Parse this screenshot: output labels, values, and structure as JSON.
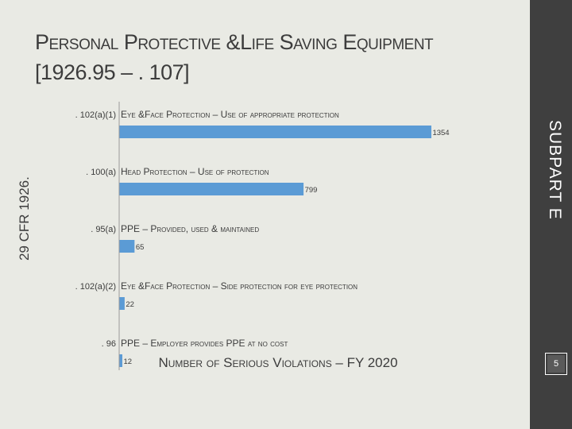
{
  "title": {
    "line1": "Personal Protective   &Life Saving Equipment",
    "line2": "[1926.95 – . 107]"
  },
  "side_label": "SUBPART E",
  "left_label": "29 CFR 1926.",
  "page_number": "5",
  "colors": {
    "bar": "#5b9bd5",
    "sidebar": "#3f3f3f",
    "background": "#e9eae4"
  },
  "chart_data": {
    "type": "bar",
    "orientation": "horizontal",
    "xlabel": "Number of Serious Violations – FY 2020",
    "xlim": [
      0,
      1380
    ],
    "grid": false,
    "categories": [
      {
        "code": ". 102(a)(1)",
        "description": "Eye &Face Protection – Use of appropriate protection"
      },
      {
        "code": ". 100(a)",
        "description": "Head Protection – Use of protection"
      },
      {
        "code": ". 95(a)",
        "description": "PPE – Provided, used & maintained"
      },
      {
        "code": ". 102(a)(2)",
        "description": "Eye &Face Protection – Side protection for eye protection"
      },
      {
        "code": ". 96",
        "description": "PPE – Employer provides PPE at no cost"
      }
    ],
    "values": [
      1354,
      799,
      65,
      22,
      12
    ],
    "value_labels": [
      "1354",
      "799",
      "65",
      "22",
      "12"
    ]
  }
}
